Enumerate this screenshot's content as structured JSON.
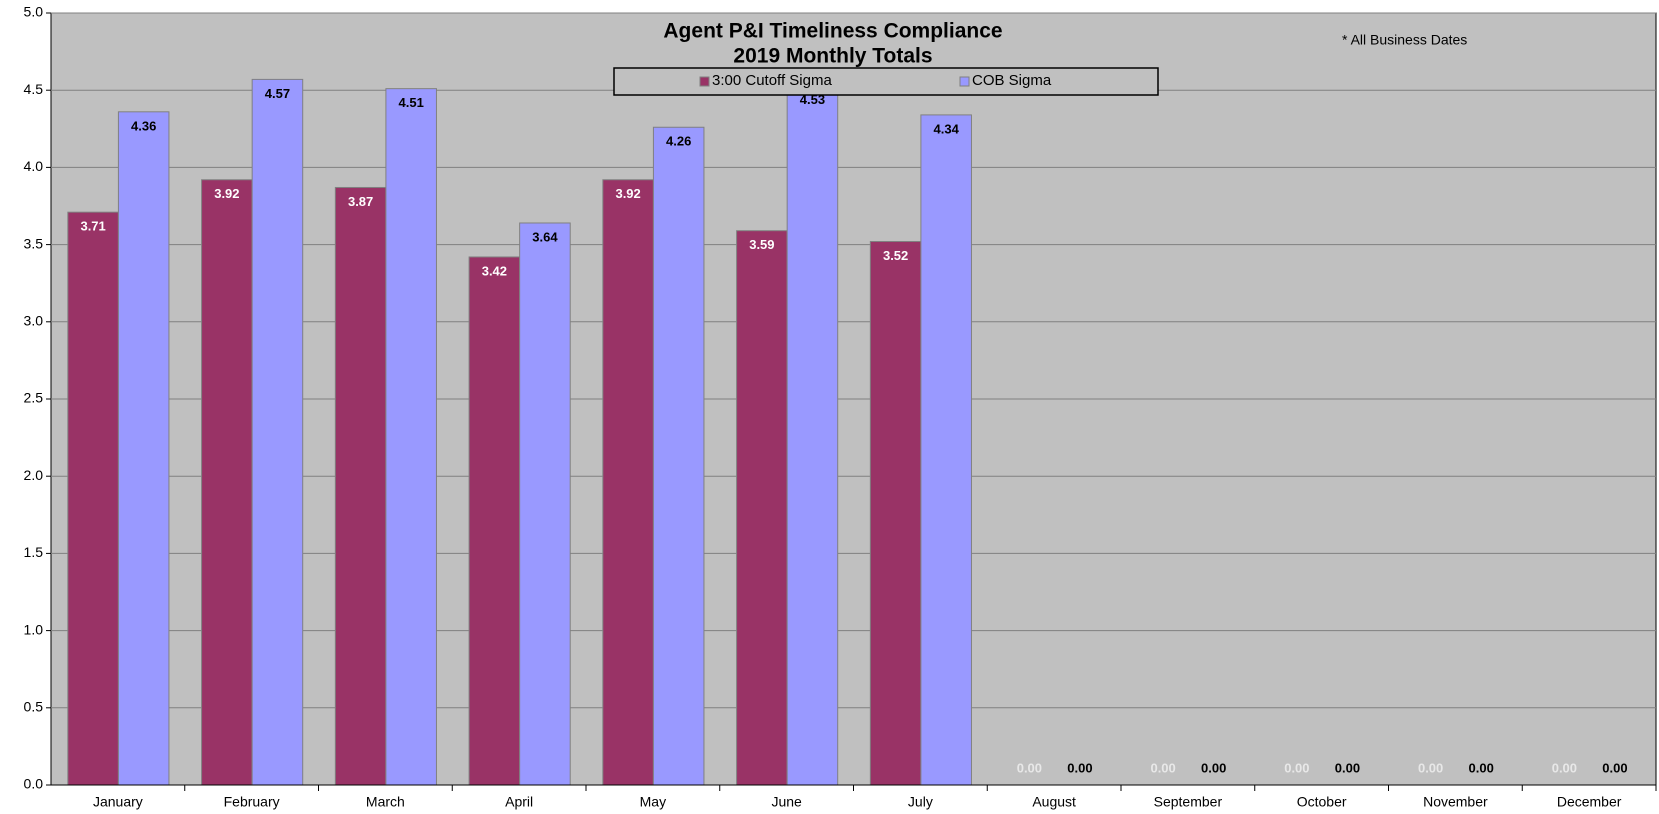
{
  "chart_data": {
    "type": "bar",
    "title": "Agent P&I Timeliness Compliance",
    "subtitle": "2019 Monthly Totals",
    "annotation": "* All Business Dates",
    "categories": [
      "January",
      "February",
      "March",
      "April",
      "May",
      "June",
      "July",
      "August",
      "September",
      "October",
      "November",
      "December"
    ],
    "series": [
      {
        "name": "3:00 Cutoff Sigma",
        "color": "#993366",
        "values": [
          3.71,
          3.92,
          3.87,
          3.42,
          3.92,
          3.59,
          3.52,
          0,
          0,
          0,
          0,
          0
        ],
        "value_labels": [
          "3.71",
          "3.92",
          "3.87",
          "3.42",
          "3.92",
          "3.59",
          "3.52",
          "0.00",
          "0.00",
          "0.00",
          "0.00",
          "0.00"
        ]
      },
      {
        "name": "COB Sigma",
        "color": "#9999ff",
        "values": [
          4.36,
          4.57,
          4.51,
          3.64,
          4.26,
          4.53,
          4.34,
          0,
          0,
          0,
          0,
          0
        ],
        "value_labels": [
          "4.36",
          "4.57",
          "4.51",
          "3.64",
          "4.26",
          "4.53",
          "4.34",
          "0.00",
          "0.00",
          "0.00",
          "0.00",
          "0.00"
        ]
      }
    ],
    "ylim": [
      0,
      5
    ],
    "yticks": [
      {
        "value": 0,
        "label": "0.0"
      },
      {
        "value": 0.5,
        "label": "0.5"
      },
      {
        "value": 1,
        "label": "1.0"
      },
      {
        "value": 1.5,
        "label": "1.5"
      },
      {
        "value": 2,
        "label": "2.0"
      },
      {
        "value": 2.5,
        "label": "2.5"
      },
      {
        "value": 3,
        "label": "3.0"
      },
      {
        "value": 3.5,
        "label": "3.5"
      },
      {
        "value": 4,
        "label": "4.0"
      },
      {
        "value": 4.5,
        "label": "4.5"
      },
      {
        "value": 5,
        "label": "5.0"
      }
    ],
    "grid": true
  }
}
